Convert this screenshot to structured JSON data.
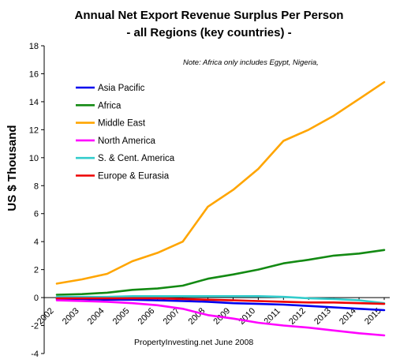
{
  "chart_data": {
    "type": "line",
    "title": "Annual Net Export Revenue Surplus Per Person",
    "subtitle": "-  all Regions (key countries) -",
    "ylabel": "US $ Thousand",
    "xlabel": "",
    "note": "Note: Africa only includes Egypt, Nigeria,",
    "credit": "PropertyInvesting.net    June 2008",
    "ylim": [
      -4,
      18
    ],
    "yticks": [
      "-4",
      "-2",
      "0",
      "2",
      "4",
      "6",
      "8",
      "10",
      "12",
      "14",
      "16",
      "18"
    ],
    "ytick_values": [
      -4,
      -2,
      0,
      2,
      4,
      6,
      8,
      10,
      12,
      14,
      16,
      18
    ],
    "categories": [
      "2002",
      "2003",
      "2004",
      "2005",
      "2006",
      "2007",
      "2008",
      "2009",
      "2010",
      "2011",
      "2012",
      "2013",
      "2014",
      "2015"
    ],
    "grid": false,
    "legend_position": "top-left",
    "series": [
      {
        "name": "Asia Pacific",
        "color": "#0000ee",
        "values": [
          -0.1,
          -0.1,
          -0.15,
          -0.15,
          -0.2,
          -0.25,
          -0.3,
          -0.4,
          -0.45,
          -0.5,
          -0.6,
          -0.7,
          -0.8,
          -0.9
        ]
      },
      {
        "name": "Africa",
        "color": "#138a13",
        "values": [
          0.2,
          0.25,
          0.35,
          0.55,
          0.65,
          0.85,
          1.35,
          1.65,
          2.0,
          2.45,
          2.7,
          3.0,
          3.15,
          3.4
        ]
      },
      {
        "name": "Middle East",
        "color": "#ffa500",
        "values": [
          1.0,
          1.3,
          1.7,
          2.6,
          3.2,
          4.0,
          6.5,
          7.7,
          9.2,
          11.2,
          12.0,
          13.0,
          14.2,
          15.4
        ]
      },
      {
        "name": "North America",
        "color": "#ff00ff",
        "values": [
          -0.2,
          -0.25,
          -0.3,
          -0.4,
          -0.55,
          -0.8,
          -1.25,
          -1.5,
          -1.8,
          -2.0,
          -2.15,
          -2.35,
          -2.55,
          -2.7
        ]
      },
      {
        "name": "S. & Cent. America",
        "color": "#33cccc",
        "values": [
          0.05,
          0.05,
          0.05,
          0.1,
          0.1,
          0.1,
          0.1,
          0.1,
          0.1,
          0.05,
          -0.05,
          -0.1,
          -0.2,
          -0.4
        ]
      },
      {
        "name": "Europe & Eurasia",
        "color": "#ee0000",
        "values": [
          -0.05,
          -0.05,
          -0.05,
          -0.05,
          -0.05,
          -0.1,
          -0.15,
          -0.2,
          -0.25,
          -0.3,
          -0.35,
          -0.35,
          -0.4,
          -0.45
        ]
      }
    ]
  }
}
